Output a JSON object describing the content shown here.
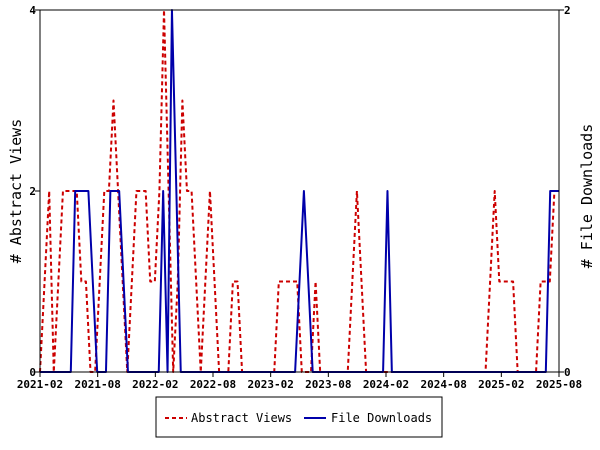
{
  "chart_data": {
    "type": "line",
    "x_labels": [
      "2021-02",
      "2021-08",
      "2022-02",
      "2022-08",
      "2023-02",
      "2023-08",
      "2024-02",
      "2024-08",
      "2025-02",
      "2025-08"
    ],
    "y_left_label": "# Abstract Views",
    "y_right_label": "# File Downloads",
    "y_left_range": [
      0,
      4
    ],
    "y_right_range": [
      0,
      2
    ],
    "y_left_ticks": [
      "0",
      "2",
      "4"
    ],
    "y_right_ticks": [
      "0",
      "2"
    ],
    "legend_position": "bottom",
    "grid": false,
    "series": [
      {
        "name": "Abstract Views",
        "axis": "left",
        "color": "#cc0000",
        "style": "dashed",
        "values": [
          0,
          1,
          2,
          0,
          1,
          2,
          2,
          2,
          2,
          1,
          1,
          0,
          0,
          1,
          2,
          2,
          3,
          2,
          1,
          0,
          1,
          2,
          2,
          2,
          1,
          1,
          2,
          4,
          2,
          0,
          1,
          3,
          2,
          2,
          1,
          0,
          1,
          2,
          1,
          0,
          0,
          0,
          1,
          1,
          0,
          0,
          0,
          0,
          0,
          0,
          0,
          0,
          1,
          1,
          1,
          1,
          1,
          0,
          0,
          0,
          1,
          0,
          0,
          0,
          0,
          0,
          0,
          0,
          1,
          2,
          1,
          0,
          0,
          0,
          0,
          0,
          0,
          0,
          0,
          0,
          0,
          0,
          0,
          0,
          0,
          0,
          0,
          0,
          0,
          0,
          0,
          0,
          0,
          0,
          0,
          0,
          0,
          0,
          1,
          2,
          1,
          1,
          1,
          1,
          0,
          0,
          0,
          0,
          0,
          1,
          1,
          1,
          2,
          2
        ]
      },
      {
        "name": "File Downloads",
        "axis": "right",
        "color": "#0000aa",
        "style": "solid",
        "values": [
          0,
          0,
          0,
          0,
          0,
          0,
          0,
          0,
          1,
          1,
          1,
          1,
          0.5,
          0,
          0,
          0,
          1,
          1,
          1,
          0.5,
          0,
          0,
          0,
          0,
          0,
          0,
          0,
          0,
          1,
          0,
          2,
          1,
          0,
          0,
          0,
          0,
          0,
          0,
          0,
          0,
          0,
          0,
          0,
          0,
          0,
          0,
          0,
          0,
          0,
          0,
          0,
          0,
          0,
          0,
          0,
          0,
          0,
          0,
          0,
          0.5,
          1,
          0.5,
          0,
          0,
          0,
          0,
          0,
          0,
          0,
          0,
          0,
          0,
          0,
          0,
          0,
          0,
          0,
          0,
          0,
          1,
          0,
          0,
          0,
          0,
          0,
          0,
          0,
          0,
          0,
          0,
          0,
          0,
          0,
          0,
          0,
          0,
          0,
          0,
          0,
          0,
          0,
          0,
          0,
          0,
          0,
          0,
          0,
          0,
          0,
          0,
          0,
          0,
          0,
          0,
          0,
          0,
          1,
          1,
          1
        ]
      }
    ]
  }
}
